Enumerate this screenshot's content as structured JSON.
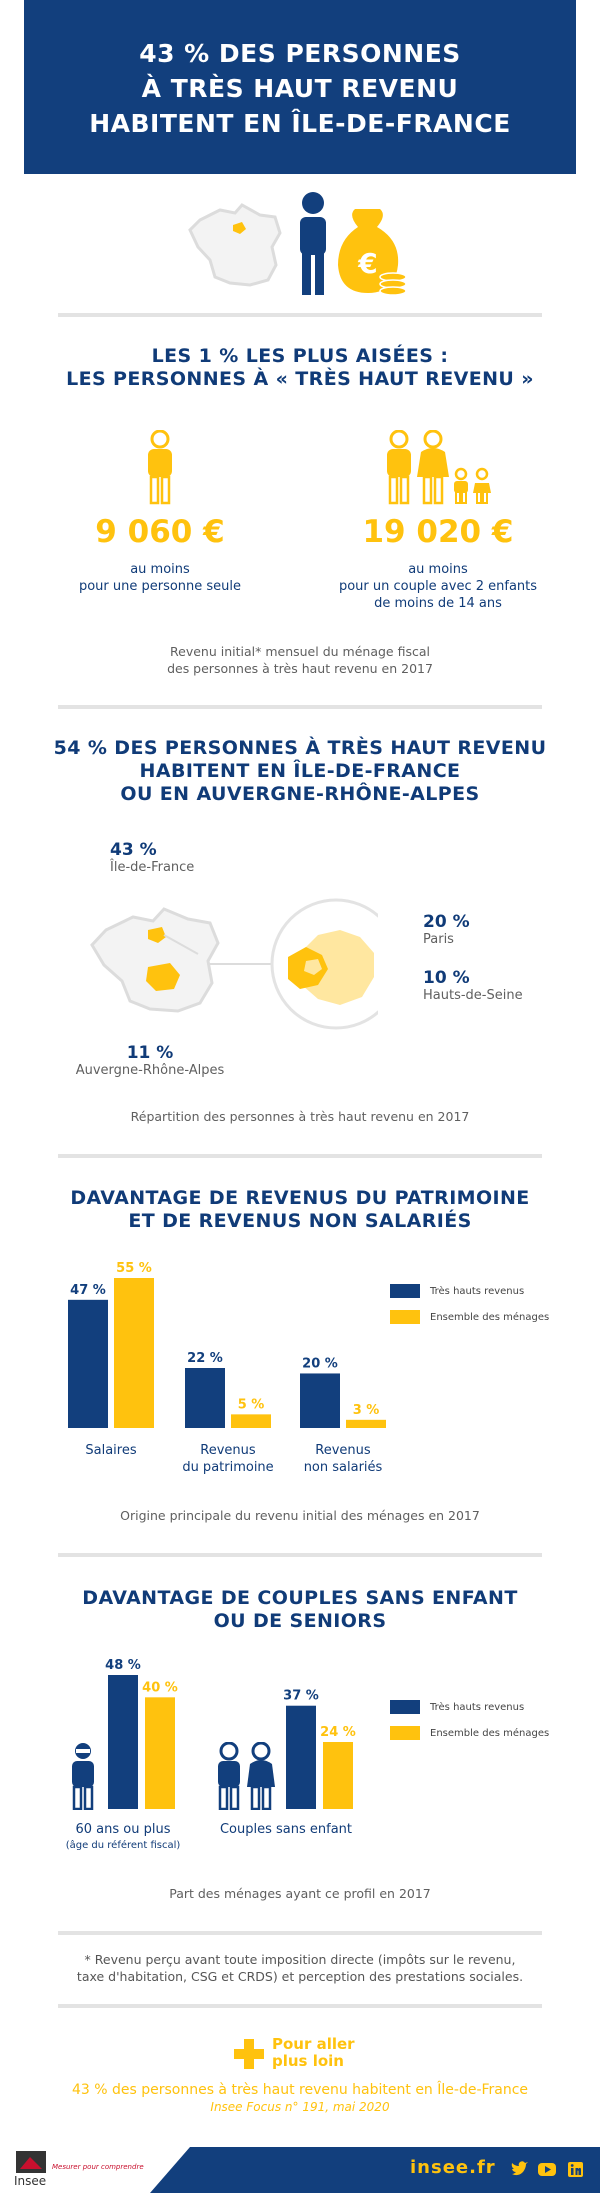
{
  "header": {
    "title_lines": [
      "43 % DES PERSONNES",
      "À TRÈS HAUT REVENU",
      "HABITENT EN ÎLE-DE-FRANCE"
    ]
  },
  "section1": {
    "title_lines": [
      "LES 1 % LES PLUS AISÉES :",
      "LES PERSONNES À « TRÈS HAUT REVENU »"
    ],
    "single": {
      "value": "9 060 €",
      "label_lines": [
        "au moins",
        "pour une personne seule"
      ]
    },
    "couple": {
      "value": "19 020 €",
      "label_lines": [
        "au moins",
        "pour un couple avec 2 enfants",
        "de moins de 14 ans"
      ]
    },
    "caption_lines": [
      "Revenu initial* mensuel du ménage fiscal",
      "des personnes à très haut revenu en 2017"
    ]
  },
  "section2": {
    "title_lines": [
      "54 % DES PERSONNES À TRÈS HAUT REVENU",
      "HABITENT EN ÎLE-DE-FRANCE",
      "OU EN AUVERGNE-RHÔNE-ALPES"
    ],
    "idf": {
      "value": "43 %",
      "label": "Île-de-France"
    },
    "ara": {
      "value": "11 %",
      "label": "Auvergne-Rhône-Alpes"
    },
    "paris": {
      "value": "20 %",
      "label": "Paris"
    },
    "hds": {
      "value": "10 %",
      "label": "Hauts-de-Seine"
    },
    "caption": "Répartition des personnes à très haut revenu en 2017"
  },
  "section3": {
    "title_lines": [
      "DAVANTAGE DE REVENUS DU PATRIMOINE",
      "ET DE REVENUS NON SALARIÉS"
    ],
    "caption": "Origine principale du revenu initial des ménages en 2017"
  },
  "section4": {
    "title_lines": [
      "DAVANTAGE DE COUPLES SANS ENFANT",
      "OU DE SENIORS"
    ],
    "caption": "Part des ménages ayant ce profil en 2017"
  },
  "chart_data": [
    {
      "type": "bar",
      "categories": [
        "Salaires",
        "Revenus du patrimoine",
        "Revenus non salariés"
      ],
      "category_lines": [
        [
          "Salaires"
        ],
        [
          "Revenus",
          "du patrimoine"
        ],
        [
          "Revenus",
          "non salariés"
        ]
      ],
      "series": [
        {
          "name": "Très hauts revenus",
          "values": [
            47,
            22,
            20
          ],
          "labels": [
            "47 %",
            "22 %",
            "20 %"
          ],
          "color": "#123f7d"
        },
        {
          "name": "Ensemble des ménages",
          "values": [
            55,
            5,
            3
          ],
          "labels": [
            "55 %",
            "5 %",
            "3 %"
          ],
          "color": "#ffc20e"
        }
      ],
      "ylim": [
        0,
        55
      ],
      "legend": "right"
    },
    {
      "type": "bar",
      "categories": [
        "60 ans ou plus",
        "Couples sans enfant"
      ],
      "sublabels": [
        "(âge du référent fiscal)",
        ""
      ],
      "series": [
        {
          "name": "Très hauts revenus",
          "values": [
            48,
            37
          ],
          "labels": [
            "48 %",
            "37 %"
          ],
          "color": "#123f7d"
        },
        {
          "name": "Ensemble des ménages",
          "values": [
            40,
            24
          ],
          "labels": [
            "40 %",
            "24 %"
          ],
          "color": "#ffc20e"
        }
      ],
      "ylim": [
        0,
        48
      ],
      "legend": "right"
    }
  ],
  "footnote_lines": [
    "* Revenu perçu avant toute imposition directe (impôts sur le revenu,",
    "taxe d'habitation, CSG et CRDS) et perception des prestations sociales."
  ],
  "more": {
    "label_lines": [
      "Pour aller",
      "plus loin"
    ],
    "link": "43 % des personnes à très haut revenu habitent en Île-de-France",
    "ref": "Insee Focus n° 191, mai 2020"
  },
  "footer": {
    "logo_text": "Insee",
    "tagline": "Mesurer pour comprendre",
    "site": "insee.fr"
  }
}
